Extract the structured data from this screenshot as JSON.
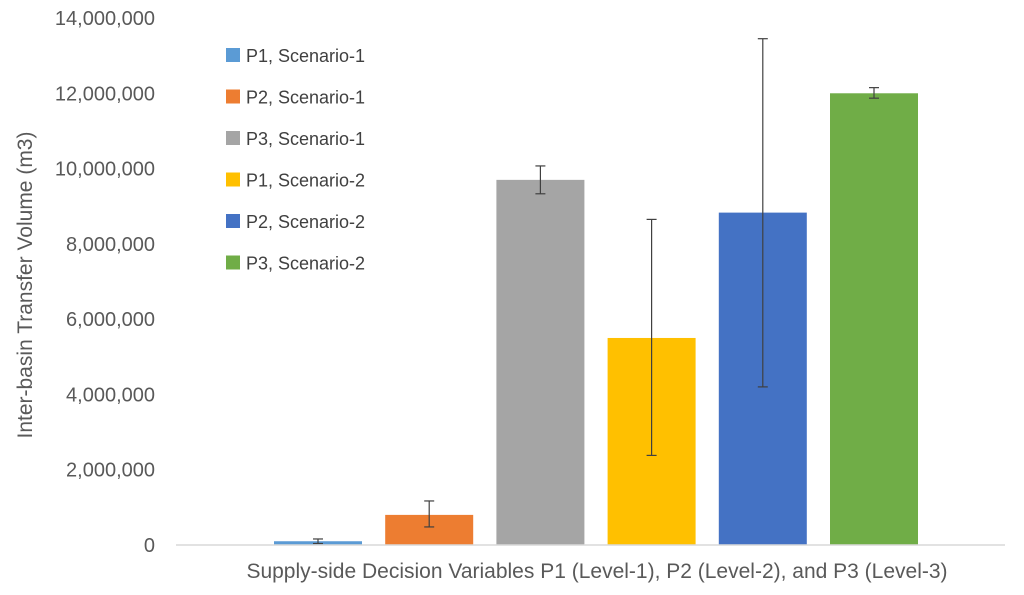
{
  "chart_data": {
    "type": "bar",
    "title": "",
    "xlabel": "Supply-side Decision Variables P1 (Level-1), P2 (Level-2), and P3 (Level-3)",
    "ylabel": "Inter-basin Transfer Volume (m3)",
    "ylim": [
      0,
      14000000
    ],
    "yticks": [
      0,
      2000000,
      4000000,
      6000000,
      8000000,
      10000000,
      12000000,
      14000000
    ],
    "ytick_labels": [
      "0",
      "2,000,000",
      "4,000,000",
      "6,000,000",
      "8,000,000",
      "10,000,000",
      "12,000,000",
      "14,000,000"
    ],
    "grid": false,
    "legend_position": "top-left",
    "series": [
      {
        "name": "P1, Scenario-1",
        "value": 100000,
        "error_low": 40000,
        "error_high": 160000,
        "color": "#5b9bd5"
      },
      {
        "name": "P2, Scenario-1",
        "value": 800000,
        "error_low": 480000,
        "error_high": 1170000,
        "color": "#ed7d31"
      },
      {
        "name": "P3, Scenario-1",
        "value": 9700000,
        "error_low": 9330000,
        "error_high": 10070000,
        "color": "#a5a5a5"
      },
      {
        "name": "P1, Scenario-2",
        "value": 5500000,
        "error_low": 2380000,
        "error_high": 8650000,
        "color": "#ffc000"
      },
      {
        "name": "P2, Scenario-2",
        "value": 8830000,
        "error_low": 4200000,
        "error_high": 13450000,
        "color": "#4472c4"
      },
      {
        "name": "P3, Scenario-2",
        "value": 12000000,
        "error_low": 11870000,
        "error_high": 12150000,
        "color": "#70ad47"
      }
    ]
  }
}
